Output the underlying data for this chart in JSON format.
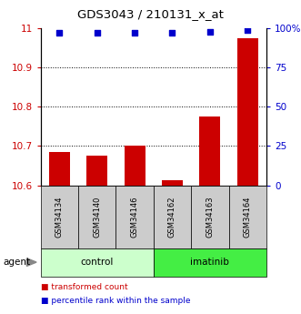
{
  "title": "GDS3043 / 210131_x_at",
  "samples": [
    "GSM34134",
    "GSM34140",
    "GSM34146",
    "GSM34162",
    "GSM34163",
    "GSM34164"
  ],
  "bar_values": [
    10.685,
    10.675,
    10.7,
    10.612,
    10.775,
    10.975
  ],
  "percentile_values": [
    97,
    97,
    97,
    97,
    97.5,
    99
  ],
  "bar_color": "#cc0000",
  "dot_color": "#0000cc",
  "ylim_left": [
    10.6,
    11.0
  ],
  "ylim_right": [
    0,
    100
  ],
  "yticks_left": [
    10.6,
    10.7,
    10.8,
    10.9,
    11.0
  ],
  "ytick_labels_left": [
    "10.6",
    "10.7",
    "10.8",
    "10.9",
    "11"
  ],
  "yticks_right": [
    0,
    25,
    50,
    75,
    100
  ],
  "ytick_labels_right": [
    "0",
    "25",
    "50",
    "75",
    "100%"
  ],
  "gridlines": [
    10.7,
    10.8,
    10.9
  ],
  "groups": [
    {
      "label": "control",
      "indices": [
        0,
        1,
        2
      ],
      "color": "#ccffcc"
    },
    {
      "label": "imatinib",
      "indices": [
        3,
        4,
        5
      ],
      "color": "#44ee44"
    }
  ],
  "agent_label": "agent",
  "bar_width": 0.55,
  "background_color": "#ffffff",
  "gray_box_color": "#cccccc",
  "legend_red_label": "transformed count",
  "legend_blue_label": "percentile rank within the sample"
}
